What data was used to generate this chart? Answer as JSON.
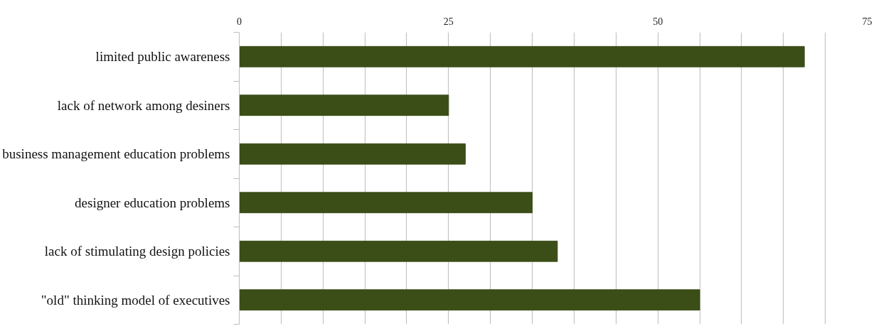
{
  "chart_data": {
    "type": "bar",
    "orientation": "horizontal",
    "categories": [
      "limited public awareness",
      "lack of network among desiners",
      "business management education problems",
      "designer education problems",
      "lack of stimulating design policies",
      "\"old\" thinking model of executives"
    ],
    "values": [
      67.5,
      25,
      27,
      35,
      38,
      55
    ],
    "color": "#3b4e18",
    "xlim": [
      0,
      75
    ],
    "xticks": [
      0,
      {
        "value": 5,
        "label": null
      },
      {
        "value": 10,
        "label": null
      },
      {
        "value": 15,
        "label": null
      },
      {
        "value": 20,
        "label": null
      },
      25,
      {
        "value": 30,
        "label": null
      },
      {
        "value": 35,
        "label": null
      },
      {
        "value": 40,
        "label": null
      },
      {
        "value": 45,
        "label": null
      },
      50,
      {
        "value": 55,
        "label": null
      },
      {
        "value": 60,
        "label": null
      },
      {
        "value": 65,
        "label": null
      },
      {
        "value": 70,
        "label": null
      },
      75
    ],
    "grid": "x"
  }
}
